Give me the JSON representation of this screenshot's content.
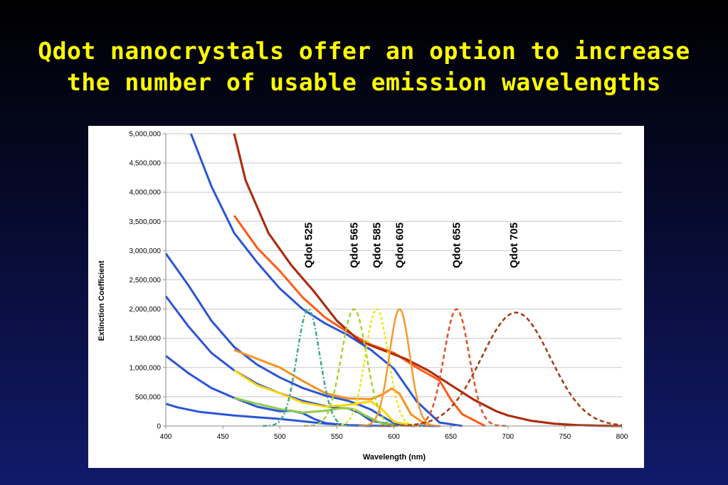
{
  "title": {
    "line1": "Qdot nanocrystals offer an option to increase",
    "line2": "the number of usable emission wavelengths"
  },
  "chart_data": {
    "type": "line",
    "xlabel": "Wavelength (nm)",
    "ylabel": "Extinction Coefficient",
    "xlim": [
      400,
      800
    ],
    "ylim": [
      0,
      5000000
    ],
    "xticks": [
      "400",
      "450",
      "500",
      "550",
      "600",
      "650",
      "700",
      "750",
      "800"
    ],
    "yticks": [
      "0",
      "500,000",
      "1,000,000",
      "1,500,000",
      "2,000,000",
      "2,500,000",
      "3,000,000",
      "3,500,000",
      "4,000,000",
      "4,500,000",
      "5,000,000"
    ],
    "grid": "horizontal",
    "annotations": [
      {
        "text": "Qdot 525",
        "x": 525
      },
      {
        "text": "Qdot 565",
        "x": 565
      },
      {
        "text": "Qdot 585",
        "x": 585
      },
      {
        "text": "Qdot 605",
        "x": 605
      },
      {
        "text": "Qdot 655",
        "x": 655
      },
      {
        "text": "Qdot 705",
        "x": 705
      }
    ],
    "absorption_series": [
      {
        "color": "#2a55d6",
        "x": [
          400,
          410,
          430,
          450,
          460,
          480,
          500,
          520,
          540,
          560,
          580,
          600
        ],
        "y": [
          380000,
          320000,
          240000,
          200000,
          180000,
          150000,
          120000,
          80000,
          40000,
          15000,
          5000,
          0
        ]
      },
      {
        "color": "#2a55d6",
        "x": [
          400,
          420,
          440,
          460,
          480,
          500,
          510,
          520,
          530,
          540,
          560,
          580
        ],
        "y": [
          1200000,
          900000,
          650000,
          480000,
          330000,
          250000,
          260000,
          220000,
          120000,
          50000,
          10000,
          0
        ]
      },
      {
        "color": "#2a55d6",
        "x": [
          400,
          420,
          440,
          460,
          480,
          500,
          520,
          540,
          550,
          560,
          570,
          580,
          600,
          620
        ],
        "y": [
          2220000,
          1700000,
          1250000,
          950000,
          720000,
          560000,
          430000,
          340000,
          310000,
          300000,
          220000,
          90000,
          15000,
          0
        ]
      },
      {
        "color": "#2a55d6",
        "x": [
          400,
          420,
          440,
          460,
          480,
          500,
          520,
          540,
          560,
          570,
          580,
          590,
          600,
          620,
          640
        ],
        "y": [
          2950000,
          2400000,
          1800000,
          1350000,
          1050000,
          830000,
          650000,
          520000,
          430000,
          360000,
          280000,
          160000,
          50000,
          5000,
          0
        ]
      },
      {
        "color": "#2a55d6",
        "x": [
          422,
          440,
          460,
          480,
          500,
          520,
          540,
          560,
          580,
          600,
          620,
          640,
          660
        ],
        "y": [
          5000000,
          4100000,
          3300000,
          2800000,
          2350000,
          2000000,
          1750000,
          1550000,
          1300000,
          980000,
          420000,
          60000,
          0
        ]
      },
      {
        "color": "#2a55d6",
        "x": [
          460,
          470,
          490,
          510,
          530,
          550,
          570,
          590,
          610,
          630,
          650,
          670,
          690,
          700,
          720,
          740,
          760,
          780,
          800
        ],
        "y": [
          5000000,
          4200000,
          3300000,
          2750000,
          2300000,
          1800000,
          1450000,
          1300000,
          1150000,
          950000,
          700000,
          450000,
          250000,
          180000,
          90000,
          40000,
          15000,
          5000,
          0
        ]
      }
    ],
    "overlay_series": [
      {
        "color": "#8fcb4b",
        "x": [
          460,
          480,
          500,
          520,
          540,
          555,
          565,
          575,
          590,
          600
        ],
        "y": [
          480000,
          380000,
          290000,
          230000,
          260000,
          310000,
          290000,
          180000,
          40000,
          0
        ]
      },
      {
        "color": "#ffd400",
        "x": [
          460,
          470,
          480,
          500,
          520,
          540,
          560,
          570,
          580,
          590,
          600,
          620
        ],
        "y": [
          950000,
          820000,
          700000,
          560000,
          400000,
          330000,
          360000,
          390000,
          420000,
          280000,
          70000,
          0
        ]
      },
      {
        "color": "#f7931e",
        "x": [
          460,
          480,
          500,
          520,
          540,
          560,
          580,
          590,
          598,
          605,
          615,
          630
        ],
        "y": [
          1300000,
          1150000,
          1000000,
          770000,
          560000,
          470000,
          460000,
          540000,
          640000,
          550000,
          200000,
          0
        ]
      },
      {
        "color": "#ff5a14",
        "x": [
          460,
          480,
          500,
          520,
          540,
          560,
          580,
          600,
          620,
          640,
          650,
          660,
          680
        ],
        "y": [
          3600000,
          3050000,
          2650000,
          2200000,
          1850000,
          1600000,
          1390000,
          1250000,
          1000000,
          780000,
          450000,
          200000,
          0
        ]
      },
      {
        "color": "#b22a00",
        "x": [
          460,
          470,
          490,
          510,
          530,
          550,
          570,
          590,
          610,
          630,
          650,
          670,
          690,
          700,
          720,
          740,
          760,
          780,
          800
        ],
        "y": [
          5000000,
          4200000,
          3300000,
          2750000,
          2300000,
          1800000,
          1450000,
          1300000,
          1150000,
          950000,
          700000,
          450000,
          250000,
          180000,
          90000,
          40000,
          15000,
          5000,
          0
        ]
      }
    ],
    "emission_series": [
      {
        "label": "Qdot 525",
        "color": "#3aa88f",
        "center": 525,
        "width": 10,
        "peak": 2000000,
        "dash": "6,3,2,3"
      },
      {
        "label": "Qdot 565",
        "color": "#a6d42a",
        "center": 565,
        "width": 11,
        "peak": 2000000,
        "dash": "6,4"
      },
      {
        "label": "Qdot 585",
        "color": "#eae81a",
        "center": 585,
        "width": 10,
        "peak": 2000000,
        "dash": "4,3"
      },
      {
        "label": "Qdot 605",
        "color": "#f59a2c",
        "center": 605,
        "width": 9,
        "peak": 2000000,
        "dash": ""
      },
      {
        "label": "Qdot 655",
        "color": "#e0502a",
        "center": 655,
        "width": 11,
        "peak": 2000000,
        "dash": "6,4"
      },
      {
        "label": "Qdot 705",
        "color": "#a33a10",
        "center": 707,
        "width": 30,
        "peak": 1940000,
        "dash": "6,4"
      }
    ]
  }
}
